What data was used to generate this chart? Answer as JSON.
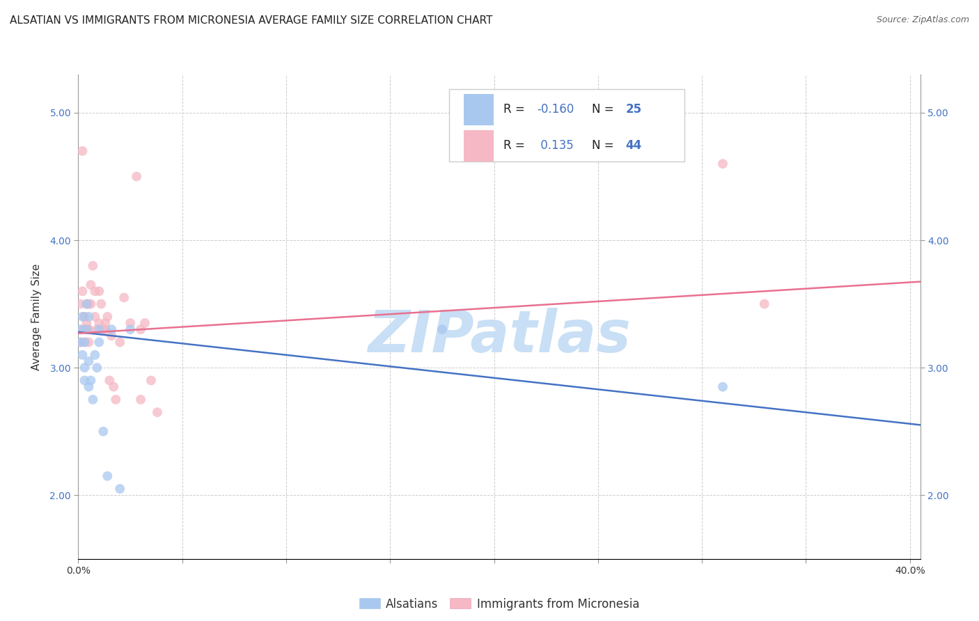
{
  "title": "ALSATIAN VS IMMIGRANTS FROM MICRONESIA AVERAGE FAMILY SIZE CORRELATION CHART",
  "source": "Source: ZipAtlas.com",
  "ylabel": "Average Family Size",
  "watermark": "ZIPatlas",
  "ylim": [
    1.5,
    5.3
  ],
  "xlim": [
    0.0,
    0.405
  ],
  "yticks": [
    2.0,
    3.0,
    4.0,
    5.0
  ],
  "xticks": [
    0.0,
    0.05,
    0.1,
    0.15,
    0.2,
    0.25,
    0.3,
    0.35,
    0.4
  ],
  "blue_color": "#A8C8F0",
  "pink_color": "#F5B8C4",
  "blue_line_color": "#4472C4",
  "pink_line_color": "#E87090",
  "alsatians_x": [
    0.001,
    0.002,
    0.002,
    0.003,
    0.003,
    0.004,
    0.004,
    0.005,
    0.005,
    0.006,
    0.007,
    0.008,
    0.009,
    0.01,
    0.012,
    0.014,
    0.016,
    0.02,
    0.025,
    0.175,
    0.31,
    0.001,
    0.003,
    0.005,
    0.01
  ],
  "alsatians_y": [
    3.3,
    3.1,
    3.4,
    3.2,
    2.9,
    3.5,
    3.3,
    3.4,
    2.85,
    2.9,
    2.75,
    3.1,
    3.0,
    3.2,
    2.5,
    2.15,
    3.3,
    2.05,
    3.3,
    3.3,
    2.85,
    3.2,
    3.0,
    3.05,
    3.3
  ],
  "micronesia_x": [
    0.001,
    0.001,
    0.002,
    0.002,
    0.003,
    0.003,
    0.003,
    0.004,
    0.004,
    0.005,
    0.005,
    0.005,
    0.006,
    0.006,
    0.007,
    0.008,
    0.008,
    0.009,
    0.01,
    0.01,
    0.011,
    0.012,
    0.013,
    0.014,
    0.015,
    0.016,
    0.018,
    0.02,
    0.022,
    0.025,
    0.028,
    0.03,
    0.032,
    0.035,
    0.038,
    0.31,
    0.33,
    0.002,
    0.003,
    0.004,
    0.005,
    0.013,
    0.017,
    0.03
  ],
  "micronesia_y": [
    3.5,
    3.2,
    4.7,
    3.3,
    3.2,
    3.3,
    3.4,
    3.35,
    3.5,
    3.2,
    3.5,
    3.3,
    3.5,
    3.65,
    3.8,
    3.6,
    3.4,
    3.3,
    3.6,
    3.35,
    3.5,
    3.3,
    3.3,
    3.4,
    2.9,
    3.25,
    2.75,
    3.2,
    3.55,
    3.35,
    4.5,
    2.75,
    3.35,
    2.9,
    2.65,
    4.6,
    3.5,
    3.6,
    3.4,
    3.3,
    3.3,
    3.35,
    2.85,
    3.3
  ],
  "grid_color": "#CCCCCC",
  "background_color": "#FFFFFF",
  "title_fontsize": 11,
  "source_fontsize": 9,
  "axis_label_fontsize": 11,
  "tick_fontsize": 10,
  "legend_fontsize": 12,
  "watermark_fontsize": 60,
  "watermark_color": "#C8DFF5",
  "marker_size": 100,
  "blue_r": "-0.160",
  "blue_n": "25",
  "pink_r": "0.135",
  "pink_n": "44",
  "blue_slope": -1.8,
  "blue_intercept": 3.28,
  "pink_slope": 1.0,
  "pink_intercept": 3.27
}
